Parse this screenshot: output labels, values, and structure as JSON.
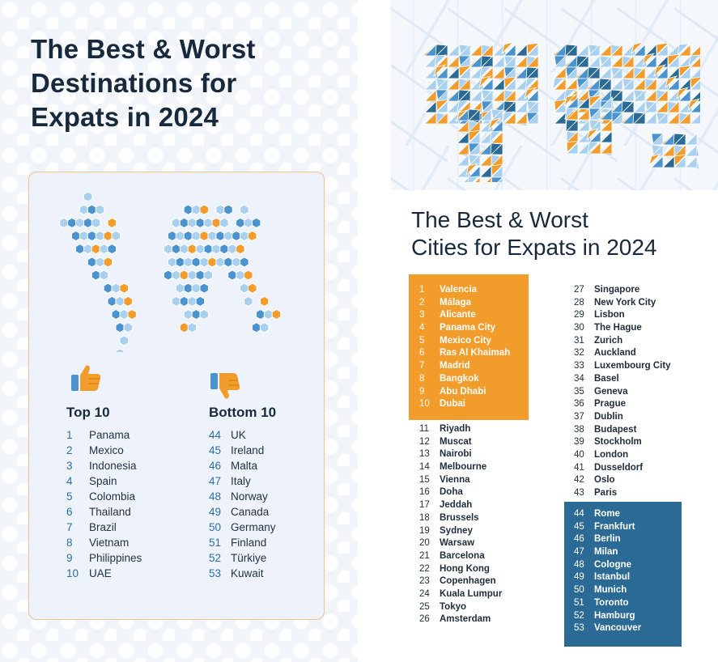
{
  "left_panel": {
    "title_lines": [
      "The Best & Worst",
      "Destinations for",
      "Expats in 2024"
    ],
    "map_icon": "world-map-hexagon-icon",
    "top": {
      "icon": "thumbs-up-icon",
      "heading": "Top 10",
      "items": [
        {
          "rank": "1",
          "name": "Panama"
        },
        {
          "rank": "2",
          "name": "Mexico"
        },
        {
          "rank": "3",
          "name": "Indonesia"
        },
        {
          "rank": "4",
          "name": "Spain"
        },
        {
          "rank": "5",
          "name": "Colombia"
        },
        {
          "rank": "6",
          "name": "Thailand"
        },
        {
          "rank": "7",
          "name": "Brazil"
        },
        {
          "rank": "8",
          "name": "Vietnam"
        },
        {
          "rank": "9",
          "name": "Philippines"
        },
        {
          "rank": "10",
          "name": "UAE"
        }
      ]
    },
    "bottom": {
      "icon": "thumbs-down-icon",
      "heading": "Bottom 10",
      "items": [
        {
          "rank": "44",
          "name": "UK"
        },
        {
          "rank": "45",
          "name": "Ireland"
        },
        {
          "rank": "46",
          "name": "Malta"
        },
        {
          "rank": "47",
          "name": "Italy"
        },
        {
          "rank": "48",
          "name": "Norway"
        },
        {
          "rank": "49",
          "name": "Canada"
        },
        {
          "rank": "50",
          "name": "Germany"
        },
        {
          "rank": "51",
          "name": "Finland"
        },
        {
          "rank": "52",
          "name": "Türkiye"
        },
        {
          "rank": "53",
          "name": "Kuwait"
        }
      ]
    }
  },
  "right_panel": {
    "title_lines": [
      "The Best & Worst",
      "Cities for Expats in 2024"
    ],
    "map_icon": "world-map-polygon-icon",
    "best_cities": [
      {
        "rank": "1",
        "name": "Valencia"
      },
      {
        "rank": "2",
        "name": "Málaga"
      },
      {
        "rank": "3",
        "name": "Alicante"
      },
      {
        "rank": "4",
        "name": "Panama City"
      },
      {
        "rank": "5",
        "name": "Mexico City"
      },
      {
        "rank": "6",
        "name": "Ras Al Khaimah"
      },
      {
        "rank": "7",
        "name": "Madrid"
      },
      {
        "rank": "8",
        "name": "Bangkok"
      },
      {
        "rank": "9",
        "name": "Abu Dhabi"
      },
      {
        "rank": "10",
        "name": "Dubai"
      }
    ],
    "middle_cities_a": [
      {
        "rank": "11",
        "name": "Riyadh"
      },
      {
        "rank": "12",
        "name": "Muscat"
      },
      {
        "rank": "13",
        "name": "Nairobi"
      },
      {
        "rank": "14",
        "name": "Melbourne"
      },
      {
        "rank": "15",
        "name": "Vienna"
      },
      {
        "rank": "16",
        "name": "Doha"
      },
      {
        "rank": "17",
        "name": "Jeddah"
      },
      {
        "rank": "18",
        "name": "Brussels"
      },
      {
        "rank": "19",
        "name": "Sydney"
      },
      {
        "rank": "20",
        "name": "Warsaw"
      },
      {
        "rank": "21",
        "name": "Barcelona"
      },
      {
        "rank": "22",
        "name": "Hong Kong"
      },
      {
        "rank": "23",
        "name": "Copenhagen"
      },
      {
        "rank": "24",
        "name": "Kuala Lumpur"
      },
      {
        "rank": "25",
        "name": "Tokyo"
      },
      {
        "rank": "26",
        "name": "Amsterdam"
      }
    ],
    "middle_cities_b": [
      {
        "rank": "27",
        "name": "Singapore"
      },
      {
        "rank": "28",
        "name": "New York City"
      },
      {
        "rank": "29",
        "name": "Lisbon"
      },
      {
        "rank": "30",
        "name": "The Hague"
      },
      {
        "rank": "31",
        "name": "Zurich"
      },
      {
        "rank": "32",
        "name": "Auckland"
      },
      {
        "rank": "33",
        "name": "Luxembourg City"
      },
      {
        "rank": "34",
        "name": "Basel"
      },
      {
        "rank": "35",
        "name": "Geneva"
      },
      {
        "rank": "36",
        "name": "Prague"
      },
      {
        "rank": "37",
        "name": "Dublin"
      },
      {
        "rank": "38",
        "name": "Budapest"
      },
      {
        "rank": "39",
        "name": "Stockholm"
      },
      {
        "rank": "40",
        "name": "London"
      },
      {
        "rank": "41",
        "name": "Dusseldorf"
      },
      {
        "rank": "42",
        "name": "Oslo"
      },
      {
        "rank": "43",
        "name": "Paris"
      }
    ],
    "worst_cities": [
      {
        "rank": "44",
        "name": "Rome"
      },
      {
        "rank": "45",
        "name": "Frankfurt"
      },
      {
        "rank": "46",
        "name": "Berlin"
      },
      {
        "rank": "47",
        "name": "Milan"
      },
      {
        "rank": "48",
        "name": "Cologne"
      },
      {
        "rank": "49",
        "name": "Istanbul"
      },
      {
        "rank": "50",
        "name": "Munich"
      },
      {
        "rank": "51",
        "name": "Toronto"
      },
      {
        "rank": "52",
        "name": "Hamburg"
      },
      {
        "rank": "53",
        "name": "Vancouver"
      }
    ]
  },
  "colors": {
    "orange": "#f29c2b",
    "deep_blue": "#2b6a95",
    "mid_blue": "#4a93cf",
    "light_blue": "#a9d0ef",
    "text_dark": "#17293b",
    "rank_blue": "#2b6ea6"
  }
}
